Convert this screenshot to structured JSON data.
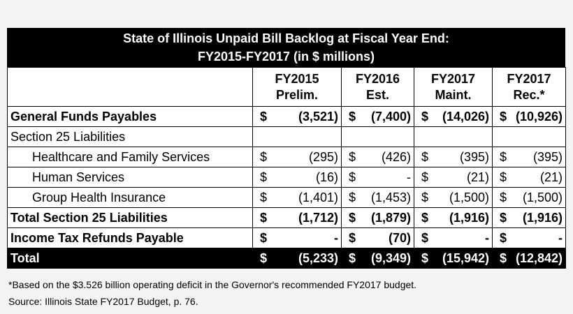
{
  "title": {
    "line1": "State of Illinois Unpaid Bill Backlog at Fiscal Year End:",
    "line2": "FY2015-FY2017 (in $ millions)"
  },
  "columns": [
    {
      "line1": "FY2015",
      "line2": "Prelim."
    },
    {
      "line1": "FY2016",
      "line2": "Est."
    },
    {
      "line1": "FY2017",
      "line2": "Maint."
    },
    {
      "line1": "FY2017",
      "line2": "Rec.*"
    }
  ],
  "rows": [
    {
      "label": "General Funds Payables",
      "style": "bold",
      "values": [
        [
          "$",
          "(3,521)"
        ],
        [
          "$",
          "(7,400)"
        ],
        [
          "$",
          "(14,026)"
        ],
        [
          "$",
          "(10,926)"
        ]
      ]
    },
    {
      "label": "Section 25 Liabilities",
      "style": "plain",
      "values": [
        [
          "",
          ""
        ],
        [
          "",
          ""
        ],
        [
          "",
          ""
        ],
        [
          "",
          ""
        ]
      ]
    },
    {
      "label": "Healthcare and Family Services",
      "style": "indent",
      "values": [
        [
          "$",
          "(295)"
        ],
        [
          "$",
          "(426)"
        ],
        [
          "$",
          "(395)"
        ],
        [
          "$",
          "(395)"
        ]
      ]
    },
    {
      "label": "Human Services",
      "style": "indent",
      "values": [
        [
          "$",
          "(16)"
        ],
        [
          "$",
          "-"
        ],
        [
          "$",
          "(21)"
        ],
        [
          "$",
          "(21)"
        ]
      ]
    },
    {
      "label": "Group Health Insurance",
      "style": "indent",
      "values": [
        [
          "$",
          "(1,401)"
        ],
        [
          "$",
          "(1,453)"
        ],
        [
          "$",
          "(1,500)"
        ],
        [
          "$",
          "(1,500)"
        ]
      ]
    },
    {
      "label": "Total Section 25 Liabilities",
      "style": "bold",
      "values": [
        [
          "$",
          "(1,712)"
        ],
        [
          "$",
          "(1,879)"
        ],
        [
          "$",
          "(1,916)"
        ],
        [
          "$",
          "(1,916)"
        ]
      ]
    },
    {
      "label": "Income Tax Refunds Payable",
      "style": "bold",
      "values": [
        [
          "$",
          "-"
        ],
        [
          "$",
          "(70)"
        ],
        [
          "$",
          "-"
        ],
        [
          "$",
          "-"
        ]
      ]
    },
    {
      "label": "Total",
      "style": "total",
      "values": [
        [
          "$",
          "(5,233)"
        ],
        [
          "$",
          "(9,349)"
        ],
        [
          "$",
          "(15,942)"
        ],
        [
          "$",
          "(12,842)"
        ]
      ]
    }
  ],
  "footnote": "*Based on the $3.526 billion operating deficit in the Governor's recommended FY2017 budget.",
  "source": "Source: Illinois State FY2017 Budget, p. 76."
}
